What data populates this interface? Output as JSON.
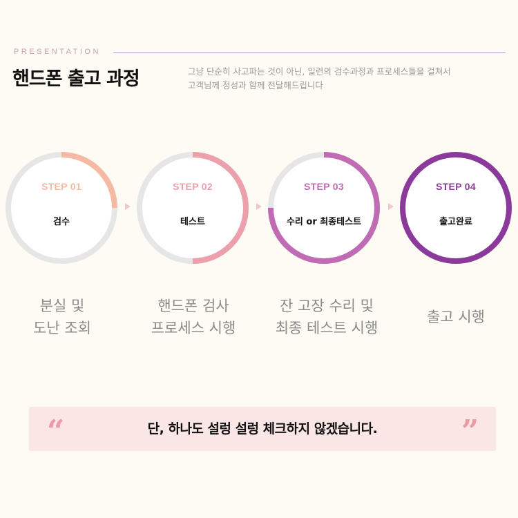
{
  "header": {
    "eyebrow": "PRESENTATION",
    "title": "핸드폰 출고 과정",
    "description_lines": [
      "그냥 단순히 사고파는 것이 아닌, 일련의 검수과정과 프로세스들을 걸쳐서",
      "고객님께 정성과 함께 전달해드립니다"
    ]
  },
  "steps": [
    {
      "number": "STEP 01",
      "name": "검수",
      "caption_lines": [
        "분실 및",
        "도난 조회"
      ],
      "color": "#f5b9a4",
      "progress": 0.25
    },
    {
      "number": "STEP 02",
      "name": "테스트",
      "caption_lines": [
        "핸드폰 검사",
        "프로세스 시행"
      ],
      "color": "#eba0ab",
      "progress": 0.5
    },
    {
      "number": "STEP 03",
      "name": "수리 or 최종테스트",
      "caption_lines": [
        "잔 고장 수리 및",
        "최종 테스트 시행"
      ],
      "color": "#c06bb4",
      "progress": 0.75
    },
    {
      "number": "STEP 04",
      "name": "출고완료",
      "caption_lines": [
        "출고 시행"
      ],
      "color": "#8b3a9b",
      "progress": 1.0
    }
  ],
  "banner": {
    "open_quote": "“",
    "text": "단, 하나도 설렁 설렁 체크하지 않겠습니다.",
    "close_quote": "”"
  },
  "colors": {
    "background": "#fdfbf3",
    "ring_track": "#e6e6e6",
    "arrow": "#f2c8cd",
    "banner_bg": "#fbe6e6",
    "quote": "#ec9aa6"
  }
}
